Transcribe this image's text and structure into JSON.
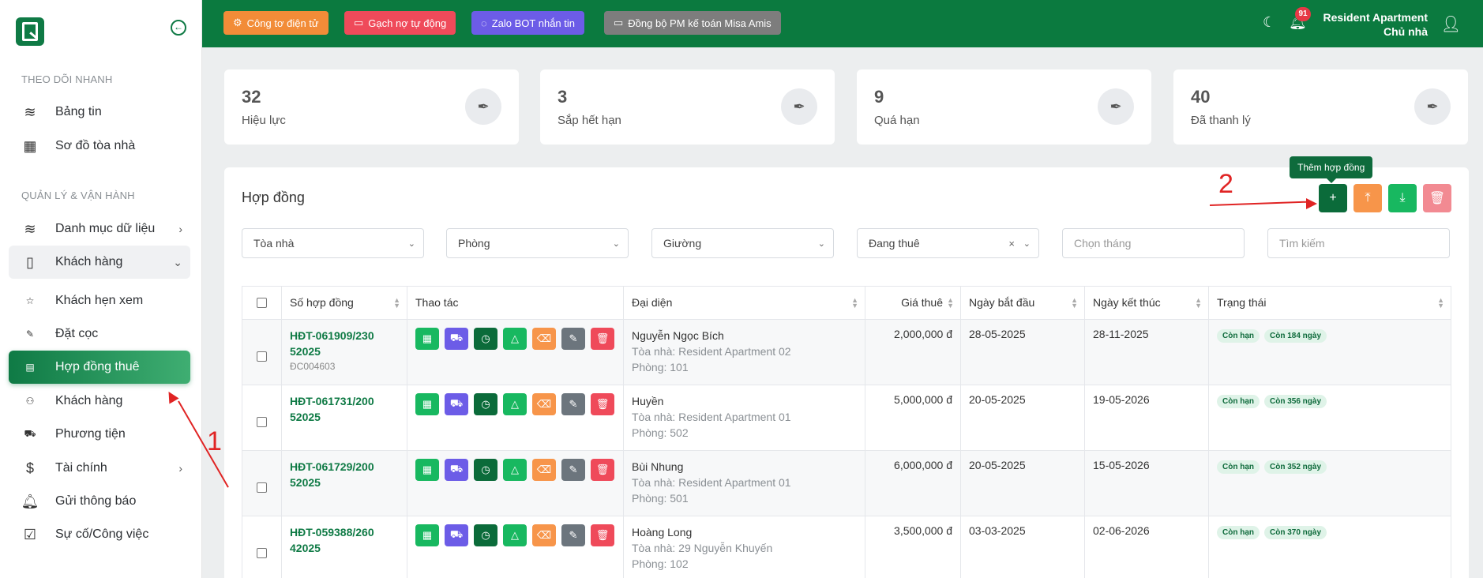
{
  "sidebar": {
    "sections": [
      {
        "title": "THEO DÕI NHANH"
      },
      {
        "title": "QUẢN LÝ & VẬN HÀNH"
      }
    ],
    "items": [
      {
        "label": "Bảng tin",
        "icon": "layers-icon"
      },
      {
        "label": "Sơ đồ tòa nhà",
        "icon": "layout-icon"
      },
      {
        "label": "Danh mục dữ liệu",
        "icon": "layers-icon"
      },
      {
        "label": "Khách hàng",
        "icon": "book-icon"
      },
      {
        "label": "Khách hẹn xem",
        "icon": "star-icon"
      },
      {
        "label": "Đặt cọc",
        "icon": "feather-icon"
      },
      {
        "label": "Hợp đồng thuê",
        "icon": "document-icon"
      },
      {
        "label": "Khách hàng",
        "icon": "users-icon"
      },
      {
        "label": "Phương tiện",
        "icon": "truck-icon"
      },
      {
        "label": "Tài chính",
        "icon": "dollar-icon"
      },
      {
        "label": "Gửi thông báo",
        "icon": "bell-icon"
      },
      {
        "label": "Sự cố/Công việc",
        "icon": "check-square-icon"
      }
    ]
  },
  "topbar": {
    "buttons": [
      {
        "label": "Công tơ điện tử",
        "color": "#f28c38"
      },
      {
        "label": "Gạch nợ tự động",
        "color": "#ef4a5a"
      },
      {
        "label": "Zalo BOT nhắn tin",
        "color": "#6c5ce7"
      },
      {
        "label": "Đồng bộ PM kế toán Misa Amis",
        "color": "#7d7d7d"
      }
    ],
    "notification_count": "91",
    "user_name": "Resident Apartment",
    "user_role": "Chủ nhà"
  },
  "stats": [
    {
      "value": "32",
      "label": "Hiệu lực"
    },
    {
      "value": "3",
      "label": "Sắp hết hạn"
    },
    {
      "value": "9",
      "label": "Quá hạn"
    },
    {
      "value": "40",
      "label": "Đã thanh lý"
    }
  ],
  "panel": {
    "title": "Hợp đồng",
    "tooltip": "Thêm hợp đồng",
    "filters": {
      "building": "Tòa nhà",
      "room": "Phòng",
      "bed": "Giường",
      "status": "Đang thuê",
      "month_placeholder": "Chọn tháng",
      "search_placeholder": "Tìm kiếm"
    },
    "annotations": {
      "step1": "1",
      "step2": "2"
    }
  },
  "table": {
    "columns": [
      "Số hợp đồng",
      "Thao tác",
      "Đại diện",
      "Giá thuê",
      "Ngày bắt đầu",
      "Ngày kết thúc",
      "Trạng thái"
    ],
    "rows": [
      {
        "contract": "HĐT-061909/23052025",
        "deposit": "ĐC004603",
        "name": "Nguyễn Ngọc Bích",
        "building": "Tòa nhà: Resident Apartment 02",
        "room": "Phòng: 101",
        "price": "2,000,000 đ",
        "start": "28-05-2025",
        "end": "28-11-2025",
        "status": "Còn hạn",
        "remaining": "Còn 184 ngày"
      },
      {
        "contract": "HĐT-061731/20052025",
        "deposit": "",
        "name": "Huyền",
        "building": "Tòa nhà: Resident Apartment 01",
        "room": "Phòng: 502",
        "price": "5,000,000 đ",
        "start": "20-05-2025",
        "end": "19-05-2026",
        "status": "Còn hạn",
        "remaining": "Còn 356 ngày"
      },
      {
        "contract": "HĐT-061729/20052025",
        "deposit": "",
        "name": "Bùi Nhung",
        "building": "Tòa nhà: Resident Apartment 01",
        "room": "Phòng: 501",
        "price": "6,000,000 đ",
        "start": "20-05-2025",
        "end": "15-05-2026",
        "status": "Còn hạn",
        "remaining": "Còn 352 ngày"
      },
      {
        "contract": "HĐT-059388/26042025",
        "deposit": "",
        "name": "Hoàng Long",
        "building": "Tòa nhà: 29 Nguyễn Khuyến",
        "room": "Phòng: 102",
        "price": "3,500,000 đ",
        "start": "03-03-2025",
        "end": "02-06-2026",
        "status": "Còn hạn",
        "remaining": "Còn 370 ngày"
      }
    ]
  }
}
